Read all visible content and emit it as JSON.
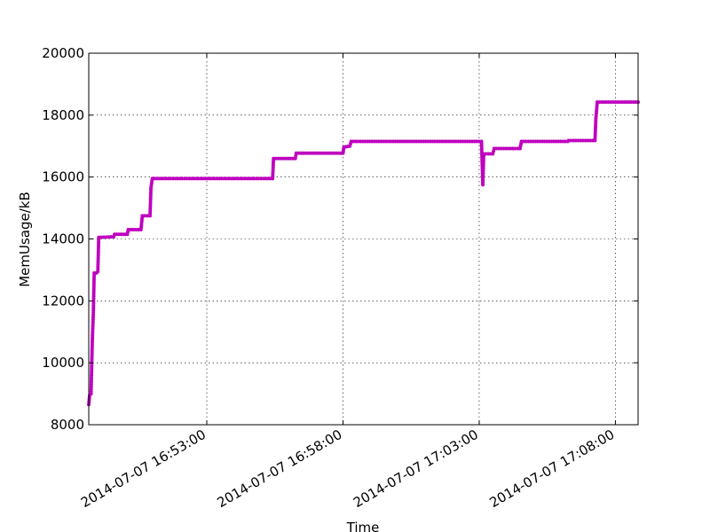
{
  "chart_data": {
    "type": "line",
    "title": "",
    "xlabel": "Time",
    "ylabel": "MemUsage/kB",
    "grid": true,
    "legend": "none",
    "line_color": "#bf00bf",
    "x_time_range": [
      "2014-07-07 16:48:40",
      "2014-07-07 17:08:50"
    ],
    "ylim": [
      8000,
      20000
    ],
    "y_ticks": [
      {
        "value": 8000,
        "label": "8000"
      },
      {
        "value": 10000,
        "label": "10000"
      },
      {
        "value": 12000,
        "label": "12000"
      },
      {
        "value": 14000,
        "label": "14000"
      },
      {
        "value": 16000,
        "label": "16000"
      },
      {
        "value": 18000,
        "label": "18000"
      },
      {
        "value": 20000,
        "label": "20000"
      }
    ],
    "x_ticks": [
      {
        "value": "2014-07-07 16:53:00",
        "label": "2014-07-07 16:53:00"
      },
      {
        "value": "2014-07-07 16:58:00",
        "label": "2014-07-07 16:58:00"
      },
      {
        "value": "2014-07-07 17:03:00",
        "label": "2014-07-07 17:03:00"
      },
      {
        "value": "2014-07-07 17:08:00",
        "label": "2014-07-07 17:08:00"
      }
    ],
    "series": [
      {
        "points": [
          [
            "2014-07-07 16:48:40",
            8650
          ],
          [
            "2014-07-07 16:48:42",
            8950
          ],
          [
            "2014-07-07 16:48:45",
            9000
          ],
          [
            "2014-07-07 16:48:48",
            10800
          ],
          [
            "2014-07-07 16:48:50",
            11550
          ],
          [
            "2014-07-07 16:48:52",
            12900
          ],
          [
            "2014-07-07 16:48:57",
            12900
          ],
          [
            "2014-07-07 16:49:00",
            12950
          ],
          [
            "2014-07-07 16:49:02",
            14050
          ],
          [
            "2014-07-07 16:49:35",
            14070
          ],
          [
            "2014-07-07 16:49:37",
            14150
          ],
          [
            "2014-07-07 16:50:05",
            14150
          ],
          [
            "2014-07-07 16:50:07",
            14300
          ],
          [
            "2014-07-07 16:50:35",
            14300
          ],
          [
            "2014-07-07 16:50:38",
            14750
          ],
          [
            "2014-07-07 16:50:55",
            14750
          ],
          [
            "2014-07-07 16:50:57",
            15650
          ],
          [
            "2014-07-07 16:51:00",
            15950
          ],
          [
            "2014-07-07 16:55:25",
            15950
          ],
          [
            "2014-07-07 16:55:27",
            16600
          ],
          [
            "2014-07-07 16:56:15",
            16600
          ],
          [
            "2014-07-07 16:56:17",
            16770
          ],
          [
            "2014-07-07 16:58:00",
            16770
          ],
          [
            "2014-07-07 16:58:02",
            16970
          ],
          [
            "2014-07-07 16:58:15",
            17000
          ],
          [
            "2014-07-07 16:58:18",
            17150
          ],
          [
            "2014-07-07 17:03:05",
            17150
          ],
          [
            "2014-07-07 17:03:08",
            15750
          ],
          [
            "2014-07-07 17:03:10",
            16750
          ],
          [
            "2014-07-07 17:03:30",
            16750
          ],
          [
            "2014-07-07 17:03:33",
            16920
          ],
          [
            "2014-07-07 17:04:30",
            16920
          ],
          [
            "2014-07-07 17:04:33",
            17150
          ],
          [
            "2014-07-07 17:06:15",
            17150
          ],
          [
            "2014-07-07 17:06:17",
            17180
          ],
          [
            "2014-07-07 17:07:15",
            17180
          ],
          [
            "2014-07-07 17:07:17",
            17900
          ],
          [
            "2014-07-07 17:07:20",
            18420
          ],
          [
            "2014-07-07 17:08:50",
            18420
          ]
        ]
      }
    ]
  }
}
